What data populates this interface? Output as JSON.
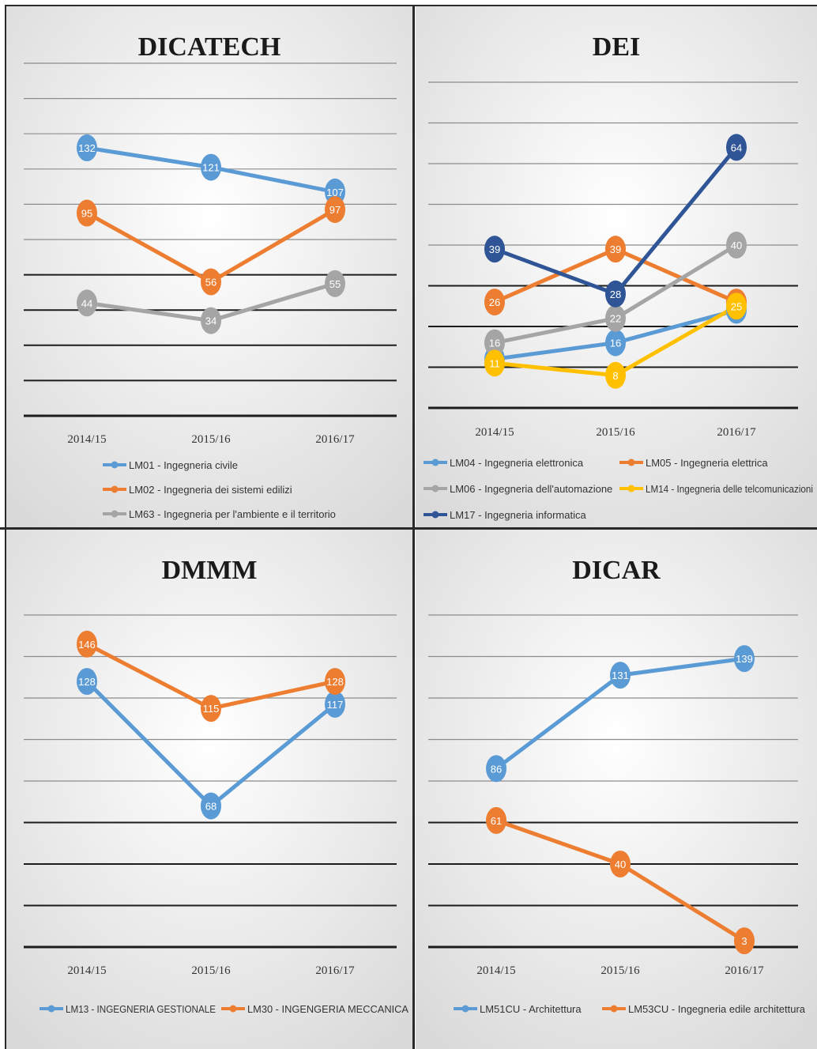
{
  "colors": {
    "blue": "#5b9bd5",
    "orange": "#ed7d31",
    "gray": "#a5a5a5",
    "yellow": "#ffc000",
    "darkblue": "#2f5597"
  },
  "chart_data": [
    {
      "type": "line",
      "title": "DICATECH",
      "categories": [
        "2014/15",
        "2015/16",
        "2016/17"
      ],
      "grid": true,
      "legend": "bottom",
      "series": [
        {
          "name": "LM01 - Ingegneria civile",
          "color": "#5b9bd5",
          "values": [
            132,
            121,
            107
          ],
          "labels": [
            "132",
            "121",
            "107"
          ]
        },
        {
          "name": "LM02 - Ingegneria dei sistemi edilizi",
          "color": "#ed7d31",
          "values": [
            95,
            56,
            97
          ],
          "labels": [
            "95",
            "56",
            "97"
          ]
        },
        {
          "name": "LM63 - Ingegneria per l'ambiente e il territorio",
          "color": "#a5a5a5",
          "values": [
            44,
            34,
            55
          ],
          "labels": [
            "44",
            "34",
            "55"
          ]
        }
      ]
    },
    {
      "type": "line",
      "title": "DEI",
      "categories": [
        "2014/15",
        "2015/16",
        "2016/17"
      ],
      "grid": true,
      "legend": "bottom",
      "series": [
        {
          "name": "LM04 - Ingegneria elettronica",
          "color": "#5b9bd5",
          "values": [
            12,
            16,
            24
          ],
          "labels": [
            "12",
            "16",
            "24"
          ]
        },
        {
          "name": "LM05 - Ingegneria elettrica",
          "color": "#ed7d31",
          "values": [
            26,
            39,
            26
          ],
          "labels": [
            "26",
            "39",
            "26"
          ]
        },
        {
          "name": "LM06 - Ingegneria dell'automazione",
          "color": "#a5a5a5",
          "values": [
            16,
            22,
            40
          ],
          "labels": [
            "16",
            "22",
            "40"
          ]
        },
        {
          "name": "LM14 - Ingegneria delle telcomunicazioni",
          "color": "#ffc000",
          "values": [
            11,
            8,
            25
          ],
          "labels": [
            "11",
            "8",
            "25"
          ]
        },
        {
          "name": "LM17 - Ingegneria informatica",
          "color": "#2f5597",
          "values": [
            39,
            28,
            64
          ],
          "labels": [
            "39",
            "28",
            "64"
          ]
        }
      ]
    },
    {
      "type": "line",
      "title": "DMMM",
      "categories": [
        "2014/15",
        "2015/16",
        "2016/17"
      ],
      "grid": true,
      "legend": "bottom",
      "series": [
        {
          "name": "LM13 - INGEGNERIA GESTIONALE",
          "color": "#5b9bd5",
          "values": [
            128,
            68,
            117
          ],
          "labels": [
            "128",
            "68",
            "117"
          ]
        },
        {
          "name": "LM30 - INGENGERIA MECCANICA",
          "color": "#ed7d31",
          "values": [
            146,
            115,
            128
          ],
          "labels": [
            "146",
            "115",
            "128"
          ]
        }
      ]
    },
    {
      "type": "line",
      "title": "DICAR",
      "categories": [
        "2014/15",
        "2015/16",
        "2016/17"
      ],
      "grid": true,
      "legend": "bottom",
      "series": [
        {
          "name": "LM51CU - Architettura",
          "color": "#5b9bd5",
          "values": [
            86,
            131,
            139
          ],
          "labels": [
            "86",
            "131",
            "139"
          ]
        },
        {
          "name": "LM53CU - Ingegneria edile architettura",
          "color": "#ed7d31",
          "values": [
            61,
            40,
            3
          ],
          "labels": [
            "61",
            "40",
            "3"
          ]
        }
      ]
    }
  ]
}
